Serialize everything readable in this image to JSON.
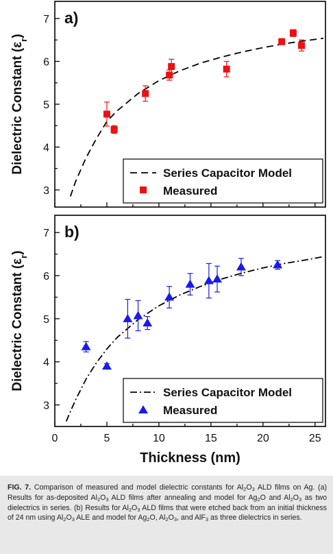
{
  "chart_data": [
    {
      "type": "scatter",
      "panel_label": "a)",
      "ylabel": "Dielectric Constant (εr)",
      "ylabel_main": "Dielectric Constant (ε",
      "ylabel_sub": "r",
      "ylabel_close": ")",
      "xlim": [
        0,
        26
      ],
      "ylim": [
        2.6,
        7.4
      ],
      "yticks": [
        "3",
        "4",
        "5",
        "6",
        "7"
      ],
      "yticks_values": [
        3,
        4,
        5,
        6,
        7
      ],
      "legend_position": "bottom-right",
      "model": {
        "name": "Series Capacitor Model",
        "style": "dashed",
        "color": "#000000",
        "x": [
          1.1,
          1.5,
          2,
          3,
          4,
          5,
          6,
          8,
          10,
          12,
          14,
          16,
          18,
          20,
          22,
          24,
          25.8
        ],
        "y": [
          2.55,
          2.85,
          3.2,
          3.75,
          4.2,
          4.6,
          4.85,
          5.25,
          5.55,
          5.78,
          5.96,
          6.1,
          6.22,
          6.32,
          6.41,
          6.48,
          6.54
        ]
      },
      "series": [
        {
          "name": "Measured",
          "marker": "square",
          "color": "#ee1111",
          "x": [
            5.0,
            5.7,
            8.7,
            11.0,
            11.2,
            16.5,
            21.8,
            22.9,
            23.7
          ],
          "y": [
            4.77,
            4.41,
            5.25,
            5.68,
            5.88,
            5.82,
            6.46,
            6.66,
            6.37
          ],
          "err": [
            0.28,
            0.09,
            0.18,
            0.12,
            0.17,
            0.18,
            0.06,
            0.08,
            0.13
          ]
        }
      ]
    },
    {
      "type": "scatter",
      "panel_label": "b)",
      "ylabel": "Dielectric Constant (εr)",
      "ylabel_main": "Dielectric Constant (ε",
      "ylabel_sub": "r",
      "ylabel_close": ")",
      "xlabel": "Thickness (nm)",
      "xlim": [
        0,
        26
      ],
      "ylim": [
        2.5,
        7.4
      ],
      "xticks": [
        "0",
        "5",
        "10",
        "15",
        "20",
        "25"
      ],
      "xticks_values": [
        0,
        5,
        10,
        15,
        20,
        25
      ],
      "yticks": [
        "3",
        "4",
        "5",
        "6",
        "7"
      ],
      "yticks_values": [
        3,
        4,
        5,
        6,
        7
      ],
      "legend_position": "bottom-right",
      "model": {
        "name": "Series Capacitor Model",
        "style": "dash-dot",
        "color": "#000000",
        "x": [
          1.1,
          1.5,
          2,
          3,
          4,
          5,
          6,
          8,
          10,
          12,
          14,
          16,
          18,
          20,
          22,
          24,
          25.8
        ],
        "y": [
          2.62,
          2.85,
          3.12,
          3.6,
          3.98,
          4.3,
          4.57,
          4.98,
          5.3,
          5.55,
          5.75,
          5.92,
          6.06,
          6.18,
          6.28,
          6.36,
          6.44
        ]
      },
      "series": [
        {
          "name": "Measured",
          "marker": "triangle",
          "color": "#1a1aee",
          "x": [
            3.0,
            5.0,
            7.0,
            8.0,
            8.9,
            11.0,
            13.0,
            14.8,
            15.6,
            17.9,
            21.4
          ],
          "y": [
            4.35,
            3.9,
            5.0,
            5.07,
            4.9,
            5.5,
            5.8,
            5.88,
            5.92,
            6.2,
            6.25
          ],
          "err": [
            0.12,
            0.06,
            0.45,
            0.35,
            0.15,
            0.25,
            0.25,
            0.4,
            0.3,
            0.2,
            0.1
          ]
        }
      ]
    }
  ],
  "caption": {
    "label": "FIG. 7.",
    "s1": "Comparison of measured and model dielectric constants for Al",
    "s1_sub": "2",
    "s2": "O",
    "s2_sub": "3",
    "s3": " ALD films on Ag. (a) Results for as-deposited Al",
    "s3_sub": "2",
    "s4": "O",
    "s4_sub": "3",
    "s5": " ALD films after annealing and model for Ag",
    "s5_sub": "2",
    "s6": "O and Al",
    "s6_sub": "2",
    "s7": "O",
    "s7_sub": "3",
    "s8": " as two dielectrics in series. (b) Results for Al",
    "s8_sub": "2",
    "s9": "O",
    "s9_sub": "3",
    "s10": " ALD films that were etched back from an initial thickness of 24 nm using Al",
    "s10_sub": "2",
    "s11": "O",
    "s11_sub": "3",
    "s12": " ALE and model for Ag",
    "s12_sub": "2",
    "s13": "O, Al",
    "s13_sub": "2",
    "s14": "O",
    "s14_sub": "3",
    "s15": ", and AlF",
    "s15_sub": "3",
    "s16": " as three dielectrics in series."
  }
}
